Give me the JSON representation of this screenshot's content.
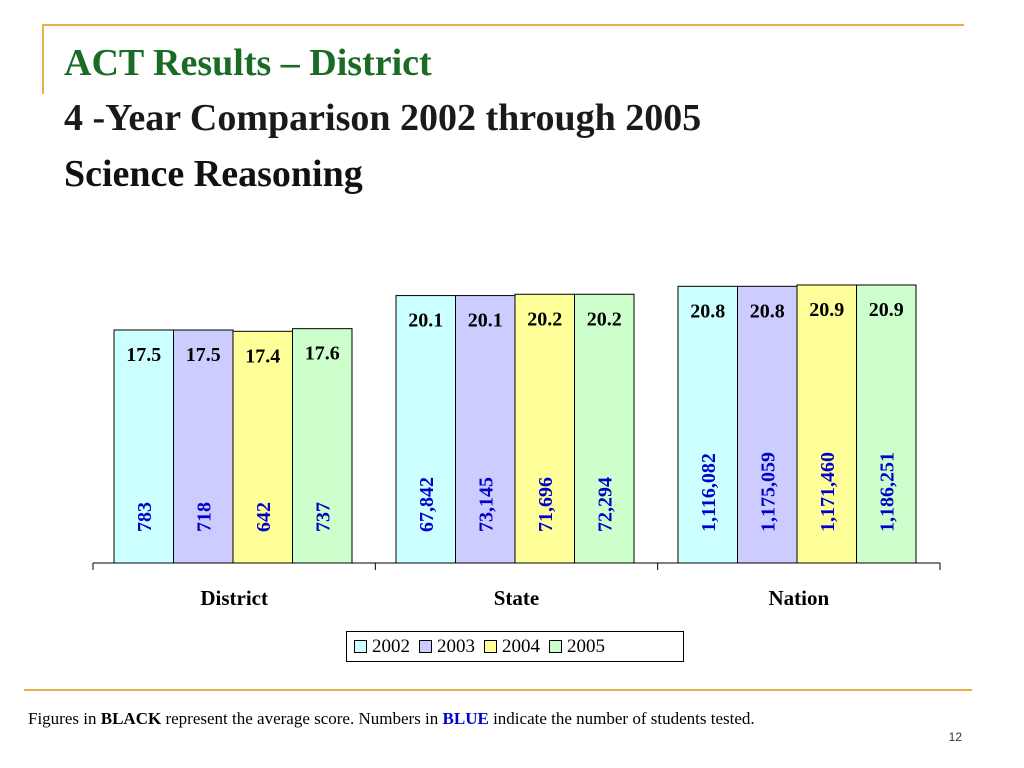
{
  "slide": {
    "title": "ACT Results – District",
    "subtitle": "4 -Year Comparison 2002 through 2005",
    "subject": "Science Reasoning",
    "slide_number": "12",
    "colors": {
      "title_green": "#1a6b26",
      "rule_gold": "#e8b04a",
      "score_text": "#000000",
      "count_text": "#0000cc"
    }
  },
  "footnote": {
    "part1": "Figures in ",
    "black_word": "BLACK",
    "part2": " represent the average score.  Numbers in ",
    "blue_word": "BLUE",
    "part3": " indicate the number of students tested."
  },
  "chart_data": {
    "type": "bar",
    "categories": [
      "District",
      "State",
      "Nation"
    ],
    "series": [
      {
        "name": "2002",
        "color": "#ccffff",
        "values": [
          17.5,
          20.1,
          20.8
        ],
        "counts": [
          "783",
          "67,842",
          "1,116,082"
        ]
      },
      {
        "name": "2003",
        "color": "#ccccff",
        "values": [
          17.5,
          20.1,
          20.8
        ],
        "counts": [
          "718",
          "73,145",
          "1,175,059"
        ]
      },
      {
        "name": "2004",
        "color": "#ffff99",
        "values": [
          17.4,
          20.2,
          20.9
        ],
        "counts": [
          "642",
          "71,696",
          "1,171,460"
        ]
      },
      {
        "name": "2005",
        "color": "#ccffcc",
        "values": [
          17.6,
          20.2,
          20.9
        ],
        "counts": [
          "737",
          "72,294",
          "1,186,251"
        ]
      }
    ],
    "legend_position": "bottom",
    "grid": false
  }
}
